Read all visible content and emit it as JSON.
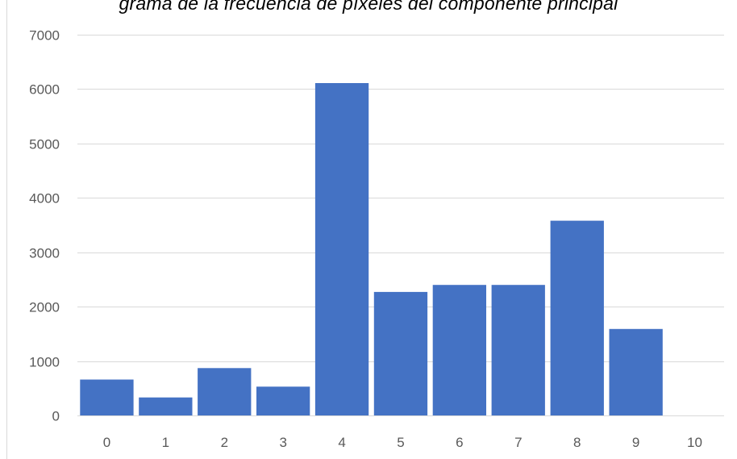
{
  "chart_data": {
    "type": "bar",
    "title": "grama de la frecuencia de píxeles del componente principal",
    "xlabel": "",
    "ylabel": "",
    "categories": [
      "0",
      "1",
      "2",
      "3",
      "4",
      "5",
      "6",
      "7",
      "8",
      "9",
      "10"
    ],
    "values": [
      660,
      330,
      870,
      530,
      6110,
      2270,
      2400,
      2400,
      3580,
      1590,
      0
    ],
    "ylim": [
      0,
      7000
    ],
    "yticks": [
      "0",
      "1000",
      "2000",
      "3000",
      "4000",
      "5000",
      "6000",
      "7000"
    ],
    "grid": true,
    "legend": "none",
    "colors": {
      "bar": "#4472c4",
      "grid": "#d9d9d9",
      "tick_text": "#595959"
    }
  }
}
